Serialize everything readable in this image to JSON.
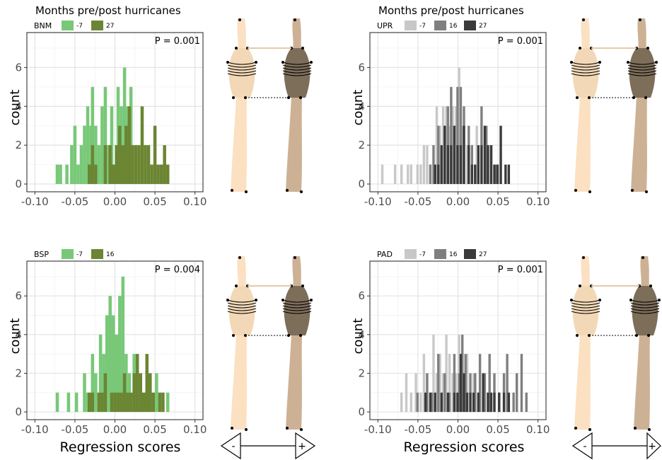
{
  "figure": {
    "legend_header": "Months pre/post hurricanes",
    "x_axis_label": "Regression scores",
    "y_axis_label": "count",
    "arrow": {
      "minus": "-",
      "plus": "+"
    }
  },
  "colors": {
    "green_light": "#78c878",
    "green_dark": "#6b8532",
    "grey_light": "#c8c8c8",
    "grey_mid": "#7f7f7f",
    "grey_dark": "#3a3a3a",
    "bone_light": "#f2d8b6",
    "bone_light_shaft": "#fbe0c2",
    "bone_dark": "#7d6e5a",
    "bone_dark_shaft": "#cdb194"
  },
  "chart_data": [
    {
      "type": "bar",
      "panel": "top-left",
      "legend_title": "BNM",
      "p_value": "P = 0.001",
      "xlim": [
        -0.11,
        0.11
      ],
      "ylim": [
        -0.4,
        7.8
      ],
      "x_ticks": [
        "-0.10",
        "-0.05",
        "0.00",
        "0.05",
        "0.10"
      ],
      "y_ticks": [
        "0",
        "2",
        "4",
        "6"
      ],
      "bin_width": 0.004,
      "series": [
        {
          "name": "-7",
          "color": "#78c878",
          "bins": [
            [
              -0.074,
              1
            ],
            [
              -0.07,
              1
            ],
            [
              -0.062,
              1
            ],
            [
              -0.056,
              2
            ],
            [
              -0.052,
              3
            ],
            [
              -0.048,
              1
            ],
            [
              -0.044,
              2
            ],
            [
              -0.04,
              3
            ],
            [
              -0.036,
              4
            ],
            [
              -0.032,
              3
            ],
            [
              -0.03,
              5
            ],
            [
              -0.026,
              3
            ],
            [
              -0.022,
              2
            ],
            [
              -0.018,
              4
            ],
            [
              -0.014,
              5
            ],
            [
              -0.01,
              2
            ],
            [
              -0.006,
              4
            ],
            [
              -0.002,
              1
            ],
            [
              0.002,
              5
            ],
            [
              0.006,
              4
            ],
            [
              0.01,
              6
            ],
            [
              0.014,
              4
            ],
            [
              0.018,
              5
            ]
          ]
        },
        {
          "name": "27",
          "color": "#6b8532",
          "bins": [
            [
              -0.034,
              1
            ],
            [
              -0.03,
              2
            ],
            [
              -0.026,
              1
            ],
            [
              -0.014,
              2
            ],
            [
              -0.008,
              2
            ],
            [
              -0.004,
              1
            ],
            [
              0.0,
              2
            ],
            [
              0.004,
              3
            ],
            [
              0.008,
              2
            ],
            [
              0.012,
              3
            ],
            [
              0.016,
              4
            ],
            [
              0.02,
              2
            ],
            [
              0.024,
              2
            ],
            [
              0.028,
              2
            ],
            [
              0.032,
              4
            ],
            [
              0.036,
              2
            ],
            [
              0.04,
              2
            ],
            [
              0.044,
              1
            ],
            [
              0.048,
              3
            ],
            [
              0.052,
              1
            ],
            [
              0.056,
              1
            ],
            [
              0.06,
              2
            ],
            [
              0.064,
              1
            ]
          ]
        }
      ]
    },
    {
      "type": "bar",
      "panel": "top-right",
      "legend_title": "UPR",
      "p_value": "P = 0.001",
      "xlim": [
        -0.11,
        0.11
      ],
      "ylim": [
        -0.4,
        7.8
      ],
      "x_ticks": [
        "-0.10",
        "-0.05",
        "0.00",
        "0.05",
        "0.10"
      ],
      "y_ticks": [
        "0",
        "2",
        "4",
        "6"
      ],
      "bin_width": 0.003,
      "series": [
        {
          "name": "-7",
          "color": "#c8c8c8",
          "bins": [
            [
              -0.096,
              1
            ],
            [
              -0.08,
              1
            ],
            [
              -0.072,
              1
            ],
            [
              -0.064,
              1
            ],
            [
              -0.06,
              1
            ],
            [
              -0.052,
              1
            ],
            [
              -0.048,
              1
            ],
            [
              -0.044,
              2
            ],
            [
              -0.04,
              2
            ],
            [
              -0.036,
              1
            ],
            [
              -0.028,
              4
            ],
            [
              -0.024,
              3
            ],
            [
              -0.02,
              4
            ],
            [
              -0.016,
              4
            ],
            [
              -0.012,
              3
            ],
            [
              -0.008,
              4
            ],
            [
              -0.004,
              4
            ],
            [
              0.0,
              6
            ],
            [
              0.004,
              3
            ],
            [
              0.01,
              2
            ],
            [
              0.016,
              1
            ],
            [
              0.022,
              3
            ]
          ]
        },
        {
          "name": "16",
          "color": "#7f7f7f",
          "bins": [
            [
              -0.036,
              1
            ],
            [
              -0.032,
              2
            ],
            [
              -0.026,
              3
            ],
            [
              -0.018,
              3
            ],
            [
              -0.014,
              4
            ],
            [
              -0.01,
              5
            ],
            [
              -0.006,
              3
            ],
            [
              -0.002,
              5
            ],
            [
              0.002,
              5
            ],
            [
              0.006,
              4
            ],
            [
              0.012,
              3
            ],
            [
              0.016,
              2
            ],
            [
              0.02,
              1
            ],
            [
              0.028,
              4
            ],
            [
              0.034,
              3
            ],
            [
              0.04,
              2
            ],
            [
              0.046,
              1
            ]
          ]
        },
        {
          "name": "27",
          "color": "#3a3a3a",
          "bins": [
            [
              -0.03,
              1
            ],
            [
              -0.026,
              1
            ],
            [
              -0.022,
              2
            ],
            [
              -0.018,
              3
            ],
            [
              -0.014,
              2
            ],
            [
              -0.01,
              2
            ],
            [
              -0.006,
              3
            ],
            [
              -0.002,
              2
            ],
            [
              0.002,
              2
            ],
            [
              0.006,
              3
            ],
            [
              0.012,
              2
            ],
            [
              0.016,
              1
            ],
            [
              0.02,
              1
            ],
            [
              0.024,
              2
            ],
            [
              0.028,
              2
            ],
            [
              0.032,
              3
            ],
            [
              0.036,
              2
            ],
            [
              0.04,
              2
            ],
            [
              0.044,
              1
            ],
            [
              0.048,
              1
            ],
            [
              0.052,
              3
            ],
            [
              0.058,
              1
            ],
            [
              0.062,
              1
            ]
          ]
        }
      ]
    },
    {
      "type": "bar",
      "panel": "bottom-left",
      "legend_title": "BSP",
      "p_value": "P = 0.004",
      "xlim": [
        -0.11,
        0.11
      ],
      "ylim": [
        -0.4,
        7.8
      ],
      "x_ticks": [
        "-0.10",
        "-0.05",
        "0.00",
        "0.05",
        "0.10"
      ],
      "y_ticks": [
        "0",
        "2",
        "4",
        "6"
      ],
      "bin_width": 0.004,
      "series": [
        {
          "name": "-7",
          "color": "#78c878",
          "bins": [
            [
              -0.074,
              1
            ],
            [
              -0.06,
              1
            ],
            [
              -0.05,
              1
            ],
            [
              -0.04,
              2
            ],
            [
              -0.036,
              1
            ],
            [
              -0.03,
              3
            ],
            [
              -0.026,
              2
            ],
            [
              -0.02,
              4
            ],
            [
              -0.016,
              3
            ],
            [
              -0.012,
              5
            ],
            [
              -0.008,
              6
            ],
            [
              -0.004,
              5
            ],
            [
              0.0,
              4
            ],
            [
              0.004,
              6
            ],
            [
              0.008,
              7
            ],
            [
              0.012,
              3
            ],
            [
              0.016,
              2
            ],
            [
              0.022,
              3
            ],
            [
              0.03,
              1
            ],
            [
              0.042,
              1
            ],
            [
              0.05,
              2
            ],
            [
              0.064,
              1
            ]
          ]
        },
        {
          "name": "16",
          "color": "#6b8532",
          "bins": [
            [
              -0.034,
              1
            ],
            [
              -0.03,
              1
            ],
            [
              -0.022,
              1
            ],
            [
              -0.018,
              1
            ],
            [
              -0.014,
              2
            ],
            [
              -0.006,
              1
            ],
            [
              -0.002,
              1
            ],
            [
              0.002,
              1
            ],
            [
              0.006,
              1
            ],
            [
              0.01,
              2
            ],
            [
              0.014,
              1
            ],
            [
              0.018,
              1
            ],
            [
              0.022,
              2
            ],
            [
              0.026,
              3
            ],
            [
              0.03,
              2
            ],
            [
              0.034,
              1
            ],
            [
              0.038,
              3
            ],
            [
              0.042,
              2
            ],
            [
              0.046,
              1
            ],
            [
              0.054,
              1
            ],
            [
              0.058,
              1
            ]
          ]
        }
      ]
    },
    {
      "type": "bar",
      "panel": "bottom-right",
      "legend_title": "PAD",
      "p_value": "P = 0.001",
      "xlim": [
        -0.11,
        0.11
      ],
      "ylim": [
        -0.4,
        7.8
      ],
      "x_ticks": [
        "-0.10",
        "-0.05",
        "0.00",
        "0.05",
        "0.10"
      ],
      "y_ticks": [
        "0",
        "2",
        "4",
        "6"
      ],
      "bin_width": 0.003,
      "series": [
        {
          "name": "-7",
          "color": "#c8c8c8",
          "bins": [
            [
              -0.072,
              1
            ],
            [
              -0.066,
              2
            ],
            [
              -0.06,
              1
            ],
            [
              -0.054,
              2
            ],
            [
              -0.048,
              1
            ],
            [
              -0.044,
              3
            ],
            [
              -0.04,
              2
            ],
            [
              -0.036,
              1
            ],
            [
              -0.032,
              4
            ],
            [
              -0.028,
              2
            ],
            [
              -0.024,
              3
            ],
            [
              -0.02,
              2
            ],
            [
              -0.016,
              4
            ],
            [
              -0.012,
              3
            ],
            [
              -0.008,
              2
            ],
            [
              -0.004,
              2
            ],
            [
              0.0,
              4
            ],
            [
              0.004,
              2
            ],
            [
              0.01,
              3
            ],
            [
              0.018,
              2
            ],
            [
              0.024,
              1
            ]
          ]
        },
        {
          "name": "16",
          "color": "#7f7f7f",
          "bins": [
            [
              -0.052,
              1
            ],
            [
              -0.04,
              2
            ],
            [
              -0.034,
              1
            ],
            [
              -0.026,
              3
            ],
            [
              -0.018,
              2
            ],
            [
              -0.012,
              1
            ],
            [
              -0.006,
              3
            ],
            [
              0.0,
              2
            ],
            [
              0.004,
              4
            ],
            [
              0.008,
              3
            ],
            [
              0.014,
              2
            ],
            [
              0.02,
              2
            ],
            [
              0.026,
              3
            ],
            [
              0.032,
              2
            ],
            [
              0.038,
              3
            ],
            [
              0.044,
              2
            ],
            [
              0.05,
              1
            ],
            [
              0.056,
              2
            ],
            [
              0.06,
              3
            ],
            [
              0.068,
              1
            ],
            [
              0.072,
              2
            ],
            [
              0.078,
              3
            ],
            [
              0.084,
              1
            ]
          ]
        },
        {
          "name": "27",
          "color": "#3a3a3a",
          "bins": [
            [
              -0.042,
              1
            ],
            [
              -0.036,
              1
            ],
            [
              -0.03,
              1
            ],
            [
              -0.022,
              1
            ],
            [
              -0.014,
              1
            ],
            [
              -0.006,
              1
            ],
            [
              -0.002,
              1
            ],
            [
              0.002,
              3
            ],
            [
              0.006,
              2
            ],
            [
              0.01,
              1
            ],
            [
              0.014,
              1
            ],
            [
              0.018,
              1
            ],
            [
              0.024,
              1
            ],
            [
              0.03,
              2
            ],
            [
              0.036,
              1
            ],
            [
              0.04,
              1
            ],
            [
              0.044,
              1
            ],
            [
              0.05,
              1
            ],
            [
              0.056,
              1
            ],
            [
              0.062,
              1
            ]
          ]
        }
      ]
    }
  ]
}
